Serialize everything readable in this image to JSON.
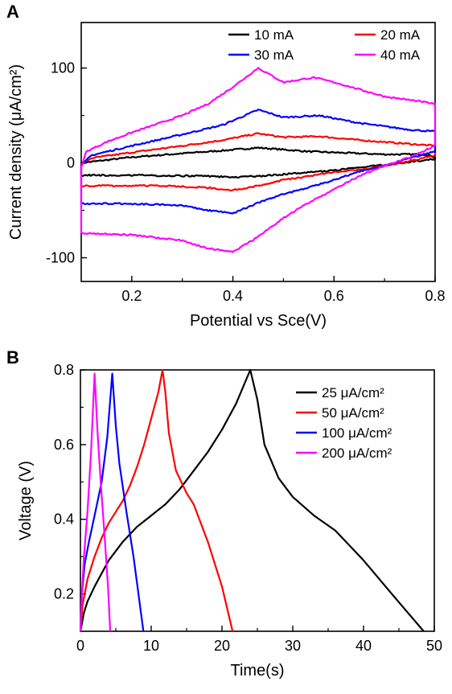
{
  "chart_data": [
    {
      "panel": "A",
      "type": "line",
      "title": "",
      "xlabel": "Potential vs Sce(V)",
      "ylabel": "Current density (μA/cm²)",
      "xlim": [
        0.1,
        0.8
      ],
      "ylim": [
        -125,
        148
      ],
      "xticks": [
        0.2,
        0.4,
        0.6,
        0.8
      ],
      "xtick_labels": [
        "0.2",
        "0.4",
        "0.6",
        "0.8"
      ],
      "yticks": [
        -100,
        0,
        100
      ],
      "ytick_labels": [
        "-100",
        "0",
        "100"
      ],
      "grid": false,
      "legend": {
        "position": "top",
        "columns": 2
      },
      "series": [
        {
          "name": "10 mA",
          "color": "#000000",
          "anodic": [
            [
              0.1,
              0
            ],
            [
              0.15,
              3
            ],
            [
              0.2,
              6
            ],
            [
              0.3,
              10
            ],
            [
              0.38,
              13
            ],
            [
              0.45,
              16
            ],
            [
              0.5,
              14
            ],
            [
              0.55,
              12
            ],
            [
              0.6,
              11
            ],
            [
              0.7,
              9
            ],
            [
              0.78,
              9
            ],
            [
              0.8,
              6
            ]
          ],
          "cathodic": [
            [
              0.8,
              4
            ],
            [
              0.75,
              1
            ],
            [
              0.7,
              -2
            ],
            [
              0.65,
              -5
            ],
            [
              0.6,
              -8
            ],
            [
              0.5,
              -12
            ],
            [
              0.45,
              -14
            ],
            [
              0.4,
              -15
            ],
            [
              0.35,
              -14
            ],
            [
              0.2,
              -13
            ],
            [
              0.1,
              -13
            ]
          ]
        },
        {
          "name": "20 mA",
          "color": "#ff0000",
          "anodic": [
            [
              0.1,
              -2
            ],
            [
              0.12,
              5
            ],
            [
              0.2,
              11
            ],
            [
              0.3,
              18
            ],
            [
              0.38,
              24
            ],
            [
              0.45,
              31
            ],
            [
              0.5,
              27
            ],
            [
              0.57,
              28
            ],
            [
              0.65,
              24
            ],
            [
              0.75,
              20
            ],
            [
              0.8,
              18
            ]
          ],
          "cathodic": [
            [
              0.8,
              8
            ],
            [
              0.75,
              2
            ],
            [
              0.7,
              -3
            ],
            [
              0.65,
              -7
            ],
            [
              0.6,
              -10
            ],
            [
              0.5,
              -18
            ],
            [
              0.45,
              -24
            ],
            [
              0.4,
              -29
            ],
            [
              0.35,
              -26
            ],
            [
              0.25,
              -24
            ],
            [
              0.1,
              -24
            ]
          ]
        },
        {
          "name": "30 mA",
          "color": "#0000ff",
          "anodic": [
            [
              0.1,
              -3
            ],
            [
              0.12,
              8
            ],
            [
              0.2,
              18
            ],
            [
              0.3,
              30
            ],
            [
              0.38,
              40
            ],
            [
              0.45,
              56
            ],
            [
              0.5,
              48
            ],
            [
              0.57,
              50
            ],
            [
              0.65,
              42
            ],
            [
              0.75,
              35
            ],
            [
              0.8,
              33
            ]
          ],
          "cathodic": [
            [
              0.8,
              12
            ],
            [
              0.75,
              5
            ],
            [
              0.7,
              -3
            ],
            [
              0.65,
              -9
            ],
            [
              0.6,
              -18
            ],
            [
              0.55,
              -26
            ],
            [
              0.5,
              -33
            ],
            [
              0.45,
              -42
            ],
            [
              0.4,
              -53
            ],
            [
              0.35,
              -50
            ],
            [
              0.3,
              -45
            ],
            [
              0.2,
              -43
            ],
            [
              0.1,
              -43
            ]
          ]
        },
        {
          "name": "40 mA",
          "color": "#ff00ff",
          "anodic": [
            [
              0.1,
              -5
            ],
            [
              0.11,
              12
            ],
            [
              0.15,
              22
            ],
            [
              0.2,
              32
            ],
            [
              0.3,
              50
            ],
            [
              0.35,
              62
            ],
            [
              0.4,
              80
            ],
            [
              0.45,
              100
            ],
            [
              0.5,
              85
            ],
            [
              0.56,
              90
            ],
            [
              0.6,
              85
            ],
            [
              0.7,
              70
            ],
            [
              0.78,
              64
            ],
            [
              0.8,
              62
            ]
          ],
          "cathodic": [
            [
              0.8,
              18
            ],
            [
              0.75,
              6
            ],
            [
              0.7,
              -3
            ],
            [
              0.65,
              -14
            ],
            [
              0.6,
              -28
            ],
            [
              0.55,
              -42
            ],
            [
              0.5,
              -58
            ],
            [
              0.45,
              -78
            ],
            [
              0.4,
              -94
            ],
            [
              0.35,
              -90
            ],
            [
              0.3,
              -82
            ],
            [
              0.2,
              -76
            ],
            [
              0.1,
              -74
            ]
          ]
        }
      ]
    },
    {
      "panel": "B",
      "type": "line",
      "title": "",
      "xlabel": "Time(s)",
      "ylabel": "Voltage (V)",
      "xlim": [
        0,
        50
      ],
      "ylim": [
        0.1,
        0.8
      ],
      "xticks": [
        0,
        10,
        20,
        30,
        40,
        50
      ],
      "xtick_labels": [
        "0",
        "10",
        "20",
        "30",
        "40",
        "50"
      ],
      "yticks": [
        0.2,
        0.4,
        0.6,
        0.8
      ],
      "ytick_labels": [
        "0.2",
        "0.4",
        "0.6",
        "0.8"
      ],
      "grid": false,
      "legend": {
        "position": "top-right",
        "columns": 1
      },
      "series": [
        {
          "name": "25 μA/cm²",
          "color": "#000000",
          "points": [
            [
              0,
              0.1
            ],
            [
              0.5,
              0.15
            ],
            [
              1,
              0.18
            ],
            [
              2,
              0.22
            ],
            [
              4,
              0.29
            ],
            [
              6,
              0.34
            ],
            [
              8,
              0.38
            ],
            [
              10,
              0.41
            ],
            [
              12,
              0.44
            ],
            [
              14,
              0.48
            ],
            [
              16,
              0.53
            ],
            [
              18,
              0.58
            ],
            [
              20,
              0.64
            ],
            [
              22,
              0.71
            ],
            [
              24,
              0.8
            ],
            [
              25,
              0.72
            ],
            [
              26,
              0.6
            ],
            [
              28,
              0.51
            ],
            [
              30,
              0.46
            ],
            [
              33,
              0.41
            ],
            [
              36,
              0.37
            ],
            [
              40,
              0.29
            ],
            [
              44,
              0.2
            ],
            [
              48.5,
              0.1
            ]
          ]
        },
        {
          "name": "50 μA/cm²",
          "color": "#ff0000",
          "points": [
            [
              0,
              0.1
            ],
            [
              0.3,
              0.17
            ],
            [
              1,
              0.24
            ],
            [
              2,
              0.3
            ],
            [
              3,
              0.35
            ],
            [
              4,
              0.39
            ],
            [
              5,
              0.42
            ],
            [
              6,
              0.45
            ],
            [
              7,
              0.49
            ],
            [
              8,
              0.54
            ],
            [
              9,
              0.6
            ],
            [
              10,
              0.67
            ],
            [
              11,
              0.74
            ],
            [
              11.6,
              0.8
            ],
            [
              12,
              0.74
            ],
            [
              12.5,
              0.63
            ],
            [
              13.5,
              0.53
            ],
            [
              15,
              0.47
            ],
            [
              16,
              0.44
            ],
            [
              18,
              0.34
            ],
            [
              20,
              0.22
            ],
            [
              21.5,
              0.1
            ]
          ]
        },
        {
          "name": "100 μA/cm²",
          "color": "#0000ff",
          "points": [
            [
              0,
              0.1
            ],
            [
              0.2,
              0.2
            ],
            [
              0.6,
              0.28
            ],
            [
              1.2,
              0.34
            ],
            [
              2,
              0.41
            ],
            [
              3,
              0.5
            ],
            [
              3.8,
              0.62
            ],
            [
              4.5,
              0.79
            ],
            [
              5,
              0.65
            ],
            [
              5.5,
              0.55
            ],
            [
              6.5,
              0.42
            ],
            [
              7.5,
              0.3
            ],
            [
              8.9,
              0.1
            ]
          ]
        },
        {
          "name": "200 μA/cm²",
          "color": "#ff00ff",
          "points": [
            [
              0,
              0.1
            ],
            [
              0.2,
              0.2
            ],
            [
              0.5,
              0.3
            ],
            [
              1,
              0.42
            ],
            [
              1.5,
              0.58
            ],
            [
              2,
              0.79
            ],
            [
              2.4,
              0.64
            ],
            [
              2.9,
              0.49
            ],
            [
              3.4,
              0.36
            ],
            [
              3.9,
              0.22
            ],
            [
              4.2,
              0.1
            ]
          ]
        }
      ]
    }
  ]
}
